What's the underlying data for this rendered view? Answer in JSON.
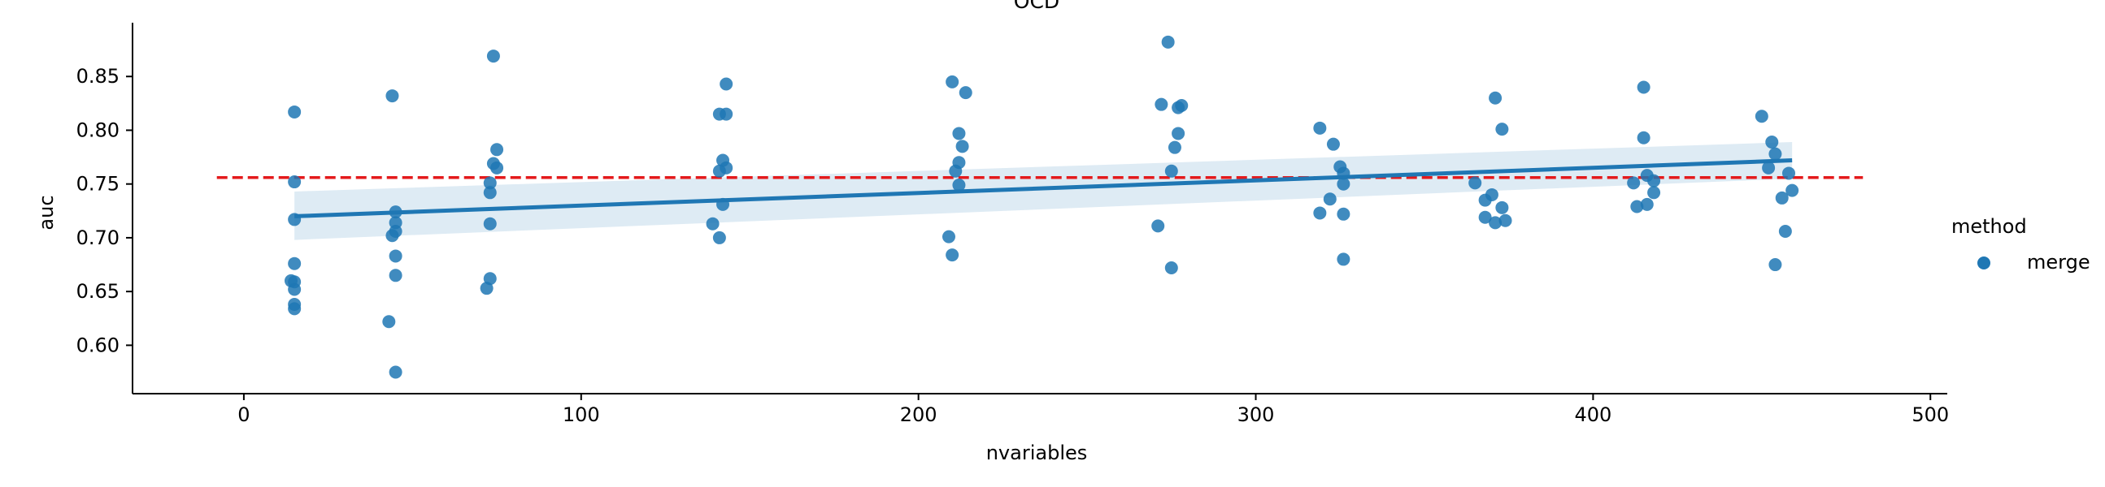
{
  "chart_data": {
    "type": "scatter",
    "title": "OCD",
    "xlabel": "nvariables",
    "ylabel": "auc",
    "xlim": [
      -33,
      505
    ],
    "ylim": [
      0.555,
      0.9
    ],
    "xticks": [
      0,
      100,
      200,
      300,
      400,
      500
    ],
    "yticks": [
      0.6,
      0.65,
      0.7,
      0.75,
      0.8,
      0.85
    ],
    "xtick_labels": [
      "0",
      "100",
      "200",
      "300",
      "400",
      "500"
    ],
    "ytick_labels": [
      "0.60",
      "0.65",
      "0.70",
      "0.75",
      "0.80",
      "0.85"
    ],
    "grid": false,
    "legend": {
      "title": "method",
      "placement": "right",
      "entries": [
        "merge"
      ]
    },
    "colors": {
      "points": "#1f77b4",
      "reference_line": "#e41a1c",
      "band": "#1f77b4"
    },
    "series": [
      {
        "name": "merge",
        "points": [
          [
            15,
            0.817
          ],
          [
            15,
            0.752
          ],
          [
            15,
            0.717
          ],
          [
            15,
            0.676
          ],
          [
            14,
            0.66
          ],
          [
            15,
            0.659
          ],
          [
            15,
            0.652
          ],
          [
            15,
            0.638
          ],
          [
            15,
            0.634
          ],
          [
            44,
            0.832
          ],
          [
            45,
            0.724
          ],
          [
            45,
            0.714
          ],
          [
            45,
            0.706
          ],
          [
            44,
            0.702
          ],
          [
            45,
            0.683
          ],
          [
            45,
            0.665
          ],
          [
            43,
            0.622
          ],
          [
            45,
            0.575
          ],
          [
            74,
            0.869
          ],
          [
            75,
            0.782
          ],
          [
            74,
            0.769
          ],
          [
            75,
            0.765
          ],
          [
            73,
            0.751
          ],
          [
            73,
            0.742
          ],
          [
            73,
            0.713
          ],
          [
            73,
            0.662
          ],
          [
            72,
            0.653
          ],
          [
            143,
            0.843
          ],
          [
            141,
            0.815
          ],
          [
            143,
            0.815
          ],
          [
            142,
            0.772
          ],
          [
            143,
            0.765
          ],
          [
            141,
            0.762
          ],
          [
            142,
            0.731
          ],
          [
            139,
            0.713
          ],
          [
            141,
            0.7
          ],
          [
            210,
            0.845
          ],
          [
            214,
            0.835
          ],
          [
            212,
            0.797
          ],
          [
            213,
            0.785
          ],
          [
            212,
            0.77
          ],
          [
            211,
            0.762
          ],
          [
            212,
            0.749
          ],
          [
            209,
            0.701
          ],
          [
            210,
            0.684
          ],
          [
            274,
            0.882
          ],
          [
            272,
            0.824
          ],
          [
            277,
            0.821
          ],
          [
            278,
            0.823
          ],
          [
            277,
            0.797
          ],
          [
            276,
            0.784
          ],
          [
            275,
            0.762
          ],
          [
            271,
            0.711
          ],
          [
            275,
            0.672
          ],
          [
            319,
            0.802
          ],
          [
            323,
            0.787
          ],
          [
            325,
            0.766
          ],
          [
            326,
            0.76
          ],
          [
            326,
            0.75
          ],
          [
            322,
            0.736
          ],
          [
            319,
            0.723
          ],
          [
            326,
            0.722
          ],
          [
            326,
            0.68
          ],
          [
            371,
            0.83
          ],
          [
            373,
            0.801
          ],
          [
            365,
            0.751
          ],
          [
            370,
            0.74
          ],
          [
            368,
            0.735
          ],
          [
            373,
            0.728
          ],
          [
            368,
            0.719
          ],
          [
            371,
            0.714
          ],
          [
            374,
            0.716
          ],
          [
            415,
            0.84
          ],
          [
            415,
            0.793
          ],
          [
            416,
            0.758
          ],
          [
            418,
            0.753
          ],
          [
            412,
            0.751
          ],
          [
            418,
            0.742
          ],
          [
            416,
            0.731
          ],
          [
            413,
            0.729
          ],
          [
            450,
            0.813
          ],
          [
            453,
            0.789
          ],
          [
            454,
            0.778
          ],
          [
            452,
            0.765
          ],
          [
            458,
            0.76
          ],
          [
            459,
            0.744
          ],
          [
            456,
            0.737
          ],
          [
            457,
            0.706
          ],
          [
            454,
            0.675
          ]
        ]
      }
    ],
    "regression": {
      "x": [
        15,
        459
      ],
      "y": [
        0.72,
        0.772
      ],
      "band_lower": [
        0.698,
        0.755
      ],
      "band_upper": [
        0.743,
        0.789
      ]
    },
    "reference_line": {
      "y": 0.756,
      "x_range": [
        -8,
        480
      ],
      "style": "dashed"
    }
  }
}
